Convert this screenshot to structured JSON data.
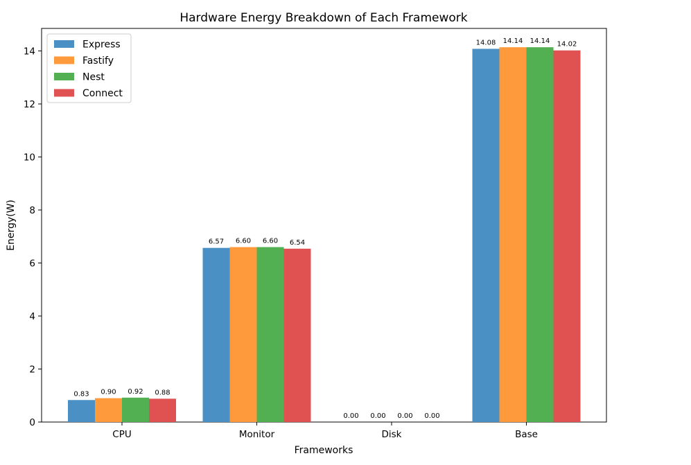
{
  "chart_data": {
    "type": "bar",
    "title": "Hardware Energy Breakdown of Each Framework",
    "xlabel": "Frameworks",
    "ylabel": "Energy(W)",
    "categories": [
      "CPU",
      "Monitor",
      "Disk",
      "Base"
    ],
    "series": [
      {
        "name": "Express",
        "color": "#4a90c4",
        "values": [
          0.83,
          6.57,
          0.0,
          14.08
        ],
        "labels": [
          "0.83",
          "6.57",
          "0.00",
          "14.08"
        ]
      },
      {
        "name": "Fastify",
        "color": "#ff9a3c",
        "values": [
          0.9,
          6.6,
          0.0,
          14.14
        ],
        "labels": [
          "0.90",
          "6.60",
          "0.00",
          "14.14"
        ]
      },
      {
        "name": "Nest",
        "color": "#52b052",
        "values": [
          0.92,
          6.6,
          0.0,
          14.14
        ],
        "labels": [
          "0.92",
          "6.60",
          "0.00",
          "14.14"
        ]
      },
      {
        "name": "Connect",
        "color": "#e05252",
        "values": [
          0.88,
          6.54,
          0.0,
          14.02
        ],
        "labels": [
          "0.88",
          "6.54",
          "0.00",
          "14.02"
        ]
      }
    ],
    "ylim": [
      0,
      14.85
    ],
    "yticks": [
      "0",
      "2",
      "4",
      "6",
      "8",
      "10",
      "12",
      "14"
    ],
    "grid": false,
    "legend": "top-left"
  }
}
